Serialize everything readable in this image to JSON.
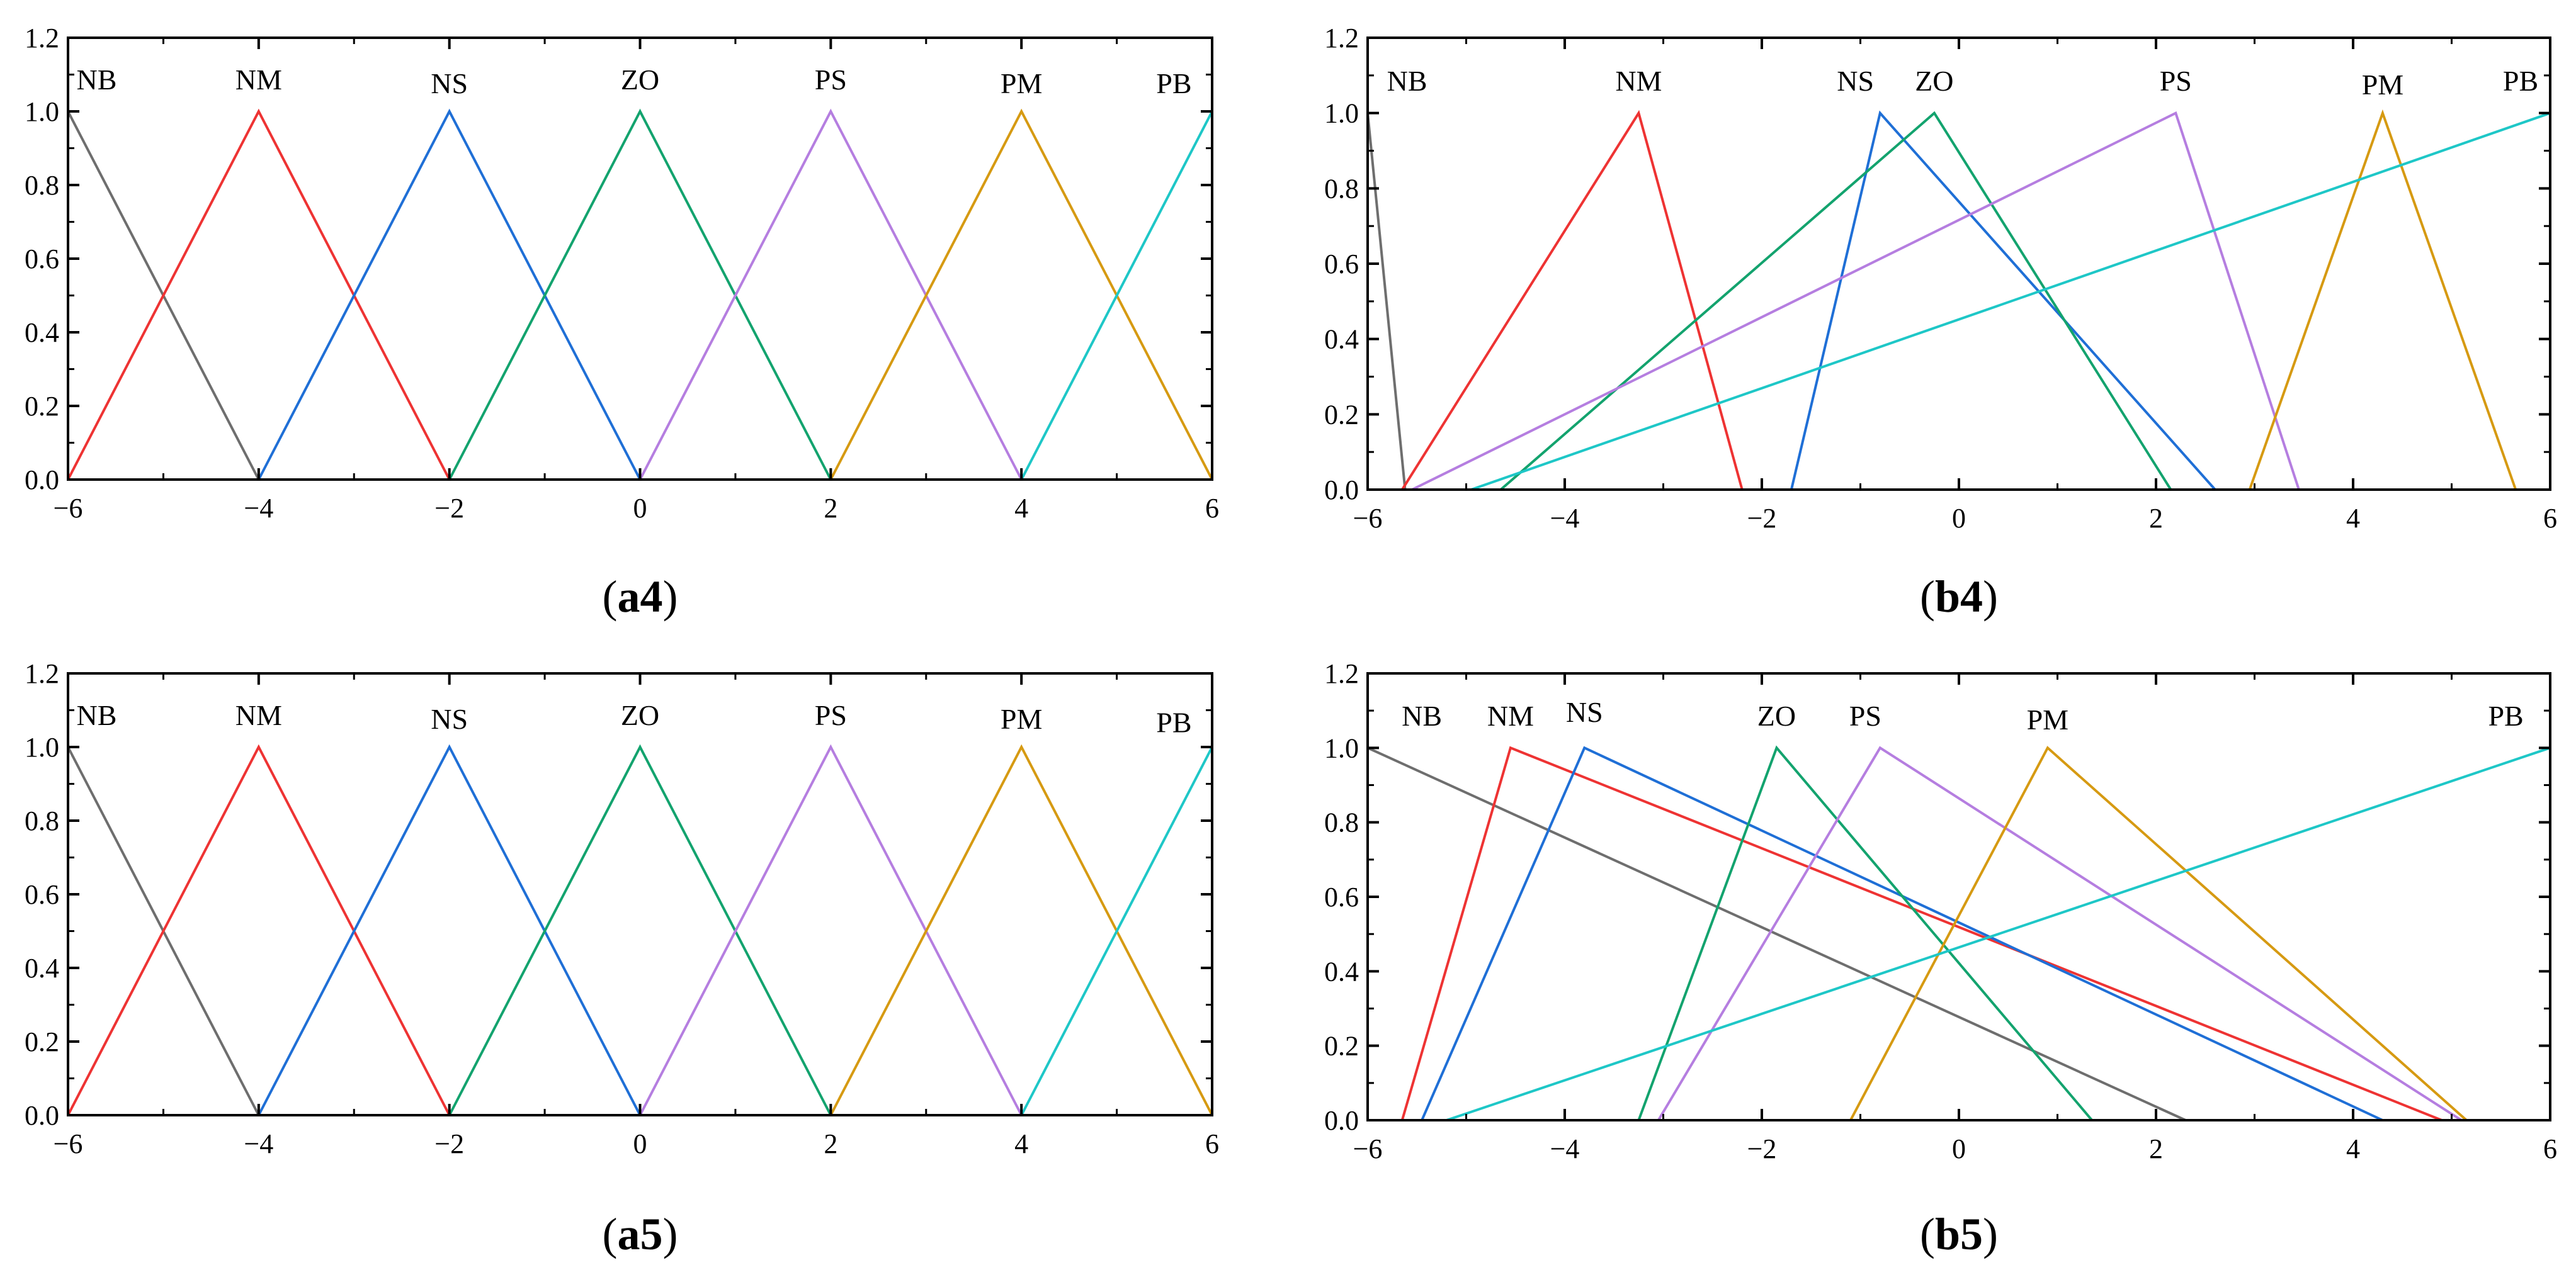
{
  "colors": {
    "NB": "#6e6e6e",
    "NM": "#ee3333",
    "NS": "#1f6fd6",
    "ZO": "#13a36e",
    "PS": "#b57ee0",
    "PM": "#d69a12",
    "PB": "#1ec7c7"
  },
  "chart_data": [
    {
      "id": "a4",
      "type": "line",
      "caption_letter": "a",
      "caption_number": "4",
      "caption_close": ")",
      "caption_open": "(",
      "xlim": [
        -6,
        6
      ],
      "ylim": [
        0,
        1.2
      ],
      "x_ticks": [
        -6,
        -4,
        -2,
        0,
        2,
        4,
        6
      ],
      "x_tick_labels": [
        "−6",
        "−4",
        "−2",
        "0",
        "2",
        "4",
        "6"
      ],
      "y_ticks": [
        0,
        0.2,
        0.4,
        0.6,
        0.8,
        1.0,
        1.2
      ],
      "y_tick_labels": [
        "0.0",
        "0.2",
        "0.4",
        "0.6",
        "0.8",
        "1.0",
        "1.2"
      ],
      "series": [
        {
          "name": "NB",
          "points": [
            [
              -6,
              1
            ],
            [
              -4,
              0
            ]
          ],
          "label_x": -5.7,
          "label_y": 1.06
        },
        {
          "name": "NM",
          "points": [
            [
              -6,
              0
            ],
            [
              -4,
              1
            ],
            [
              -2,
              0
            ]
          ],
          "label_x": -4.0,
          "label_y": 1.06
        },
        {
          "name": "NS",
          "points": [
            [
              -4,
              0
            ],
            [
              -2,
              1
            ],
            [
              0,
              0
            ]
          ],
          "label_x": -2.0,
          "label_y": 1.05
        },
        {
          "name": "ZO",
          "points": [
            [
              -2,
              0
            ],
            [
              0,
              1
            ],
            [
              2,
              0
            ]
          ],
          "label_x": 0.0,
          "label_y": 1.06
        },
        {
          "name": "PS",
          "points": [
            [
              0,
              0
            ],
            [
              2,
              1
            ],
            [
              4,
              0
            ]
          ],
          "label_x": 2.0,
          "label_y": 1.06
        },
        {
          "name": "PM",
          "points": [
            [
              2,
              0
            ],
            [
              4,
              1
            ],
            [
              6,
              0
            ]
          ],
          "label_x": 4.0,
          "label_y": 1.05
        },
        {
          "name": "PB",
          "points": [
            [
              4,
              0
            ],
            [
              6,
              1
            ]
          ],
          "label_x": 5.6,
          "label_y": 1.05
        }
      ]
    },
    {
      "id": "b4",
      "type": "line",
      "caption_letter": "b",
      "caption_number": "4",
      "caption_close": ")",
      "caption_open": "(",
      "xlim": [
        -6,
        6
      ],
      "ylim": [
        0,
        1.2
      ],
      "x_ticks": [
        -6,
        -4,
        -2,
        0,
        2,
        4,
        6
      ],
      "x_tick_labels": [
        "−6",
        "−4",
        "−2",
        "0",
        "2",
        "4",
        "6"
      ],
      "y_ticks": [
        0,
        0.2,
        0.4,
        0.6,
        0.8,
        1.0,
        1.2
      ],
      "y_tick_labels": [
        "0.0",
        "0.2",
        "0.4",
        "0.6",
        "0.8",
        "1.0",
        "1.2"
      ],
      "series": [
        {
          "name": "NB",
          "points": [
            [
              -6,
              1
            ],
            [
              -5.62,
              0
            ]
          ],
          "label_x": -5.6,
          "label_y": 1.06
        },
        {
          "name": "NM",
          "points": [
            [
              -5.65,
              0
            ],
            [
              -3.25,
              1
            ],
            [
              -2.2,
              0
            ]
          ],
          "label_x": -3.25,
          "label_y": 1.06
        },
        {
          "name": "NS",
          "points": [
            [
              -1.7,
              0
            ],
            [
              -0.8,
              1
            ],
            [
              2.6,
              0
            ]
          ],
          "label_x": -1.05,
          "label_y": 1.06
        },
        {
          "name": "ZO",
          "points": [
            [
              -4.65,
              0
            ],
            [
              -0.25,
              1
            ],
            [
              2.15,
              0
            ]
          ],
          "label_x": -0.25,
          "label_y": 1.06
        },
        {
          "name": "PS",
          "points": [
            [
              -5.55,
              0
            ],
            [
              2.2,
              1
            ],
            [
              3.45,
              0
            ]
          ],
          "label_x": 2.2,
          "label_y": 1.06
        },
        {
          "name": "PM",
          "points": [
            [
              2.95,
              0
            ],
            [
              4.3,
              1
            ],
            [
              5.65,
              0
            ]
          ],
          "label_x": 4.3,
          "label_y": 1.05
        },
        {
          "name": "PB",
          "points": [
            [
              -4.95,
              0
            ],
            [
              6,
              1
            ]
          ],
          "label_x": 5.7,
          "label_y": 1.06
        }
      ]
    },
    {
      "id": "a5",
      "type": "line",
      "caption_letter": "a",
      "caption_number": "5",
      "caption_close": ")",
      "caption_open": "(",
      "xlim": [
        -6,
        6
      ],
      "ylim": [
        0,
        1.2
      ],
      "x_ticks": [
        -6,
        -4,
        -2,
        0,
        2,
        4,
        6
      ],
      "x_tick_labels": [
        "−6",
        "−4",
        "−2",
        "0",
        "2",
        "4",
        "6"
      ],
      "y_ticks": [
        0,
        0.2,
        0.4,
        0.6,
        0.8,
        1.0,
        1.2
      ],
      "y_tick_labels": [
        "0.0",
        "0.2",
        "0.4",
        "0.6",
        "0.8",
        "1.0",
        "1.2"
      ],
      "series": [
        {
          "name": "NB",
          "points": [
            [
              -6,
              1
            ],
            [
              -4,
              0
            ]
          ],
          "label_x": -5.7,
          "label_y": 1.06
        },
        {
          "name": "NM",
          "points": [
            [
              -6,
              0
            ],
            [
              -4,
              1
            ],
            [
              -2,
              0
            ]
          ],
          "label_x": -4.0,
          "label_y": 1.06
        },
        {
          "name": "NS",
          "points": [
            [
              -4,
              0
            ],
            [
              -2,
              1
            ],
            [
              0,
              0
            ]
          ],
          "label_x": -2.0,
          "label_y": 1.05
        },
        {
          "name": "ZO",
          "points": [
            [
              -2,
              0
            ],
            [
              0,
              1
            ],
            [
              2,
              0
            ]
          ],
          "label_x": 0.0,
          "label_y": 1.06
        },
        {
          "name": "PS",
          "points": [
            [
              0,
              0
            ],
            [
              2,
              1
            ],
            [
              4,
              0
            ]
          ],
          "label_x": 2.0,
          "label_y": 1.06
        },
        {
          "name": "PM",
          "points": [
            [
              2,
              0
            ],
            [
              4,
              1
            ],
            [
              6,
              0
            ]
          ],
          "label_x": 4.0,
          "label_y": 1.05
        },
        {
          "name": "PB",
          "points": [
            [
              4,
              0
            ],
            [
              6,
              1
            ]
          ],
          "label_x": 5.6,
          "label_y": 1.04
        }
      ]
    },
    {
      "id": "b5",
      "type": "line",
      "caption_letter": "b",
      "caption_number": "5",
      "caption_close": ")",
      "caption_open": "(",
      "xlim": [
        -6,
        6
      ],
      "ylim": [
        0,
        1.2
      ],
      "x_ticks": [
        -6,
        -4,
        -2,
        0,
        2,
        4,
        6
      ],
      "x_tick_labels": [
        "−6",
        "−4",
        "−2",
        "0",
        "2",
        "4",
        "6"
      ],
      "y_ticks": [
        0,
        0.2,
        0.4,
        0.6,
        0.8,
        1.0,
        1.2
      ],
      "y_tick_labels": [
        "0.0",
        "0.2",
        "0.4",
        "0.6",
        "0.8",
        "1.0",
        "1.2"
      ],
      "series": [
        {
          "name": "NB",
          "points": [
            [
              -6,
              1
            ],
            [
              2.3,
              0
            ]
          ],
          "label_x": -5.45,
          "label_y": 1.06
        },
        {
          "name": "NM",
          "points": [
            [
              -5.65,
              0
            ],
            [
              -4.55,
              1
            ],
            [
              4.9,
              0
            ]
          ],
          "label_x": -4.55,
          "label_y": 1.06
        },
        {
          "name": "NS",
          "points": [
            [
              -5.45,
              0
            ],
            [
              -3.8,
              1
            ],
            [
              4.3,
              0
            ]
          ],
          "label_x": -3.8,
          "label_y": 1.07
        },
        {
          "name": "ZO",
          "points": [
            [
              -3.25,
              0
            ],
            [
              -1.85,
              1
            ],
            [
              1.35,
              0
            ]
          ],
          "label_x": -1.85,
          "label_y": 1.06
        },
        {
          "name": "PS",
          "points": [
            [
              -3.05,
              0
            ],
            [
              -0.8,
              1
            ],
            [
              5.1,
              0
            ]
          ],
          "label_x": -0.95,
          "label_y": 1.06
        },
        {
          "name": "PM",
          "points": [
            [
              -1.1,
              0
            ],
            [
              0.9,
              1
            ],
            [
              5.15,
              0
            ]
          ],
          "label_x": 0.9,
          "label_y": 1.05
        },
        {
          "name": "PB",
          "points": [
            [
              -5.2,
              0
            ],
            [
              6,
              1
            ]
          ],
          "label_x": 5.55,
          "label_y": 1.06
        }
      ]
    }
  ]
}
